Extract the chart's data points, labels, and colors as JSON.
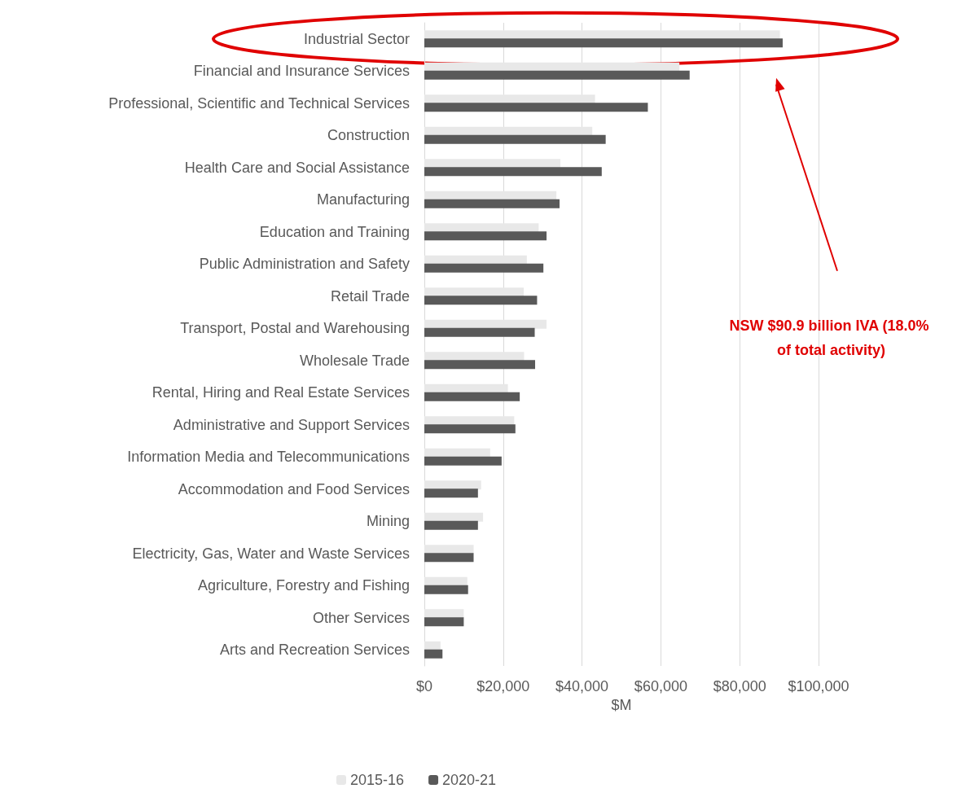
{
  "chart_data": {
    "type": "bar",
    "orientation": "horizontal",
    "xlabel": "$M",
    "categories": [
      "Industrial Sector",
      "Financial and Insurance Services",
      "Professional, Scientific and Technical Services",
      "Construction",
      "Health Care and Social Assistance",
      "Manufacturing",
      "Education and Training",
      "Public Administration and Safety",
      "Retail Trade",
      "Transport, Postal and Warehousing",
      "Wholesale Trade",
      "Rental, Hiring and Real Estate Services",
      "Administrative and Support Services",
      "Information Media and Telecommunications",
      "Accommodation and Food Services",
      "Mining",
      "Electricity, Gas, Water and Waste Services",
      "Agriculture, Forestry and Fishing",
      "Other Services",
      "Arts and Recreation Services"
    ],
    "series": [
      {
        "name": "2015-16",
        "color": "#e8e8e8",
        "values": [
          90200,
          64700,
          43300,
          42600,
          34500,
          33500,
          29000,
          26000,
          25200,
          31000,
          25300,
          21200,
          22800,
          16700,
          14400,
          14900,
          12500,
          10900,
          10000,
          4100
        ]
      },
      {
        "name": "2020-21",
        "color": "#595959",
        "values": [
          90900,
          67300,
          56700,
          46000,
          45000,
          34300,
          31000,
          30200,
          28600,
          28000,
          28100,
          24200,
          23100,
          19600,
          13600,
          13600,
          12500,
          11100,
          10000,
          4600
        ]
      }
    ],
    "xlim": [
      0,
      100000
    ],
    "xticks": [
      {
        "value": 0,
        "label": "$0"
      },
      {
        "value": 20000,
        "label": "$20,000"
      },
      {
        "value": 40000,
        "label": "$40,000"
      },
      {
        "value": 60000,
        "label": "$60,000"
      },
      {
        "value": 80000,
        "label": "$80,000"
      },
      {
        "value": 100000,
        "label": "$100,000"
      }
    ],
    "grid": "x",
    "legend": "bottom",
    "annotations": [
      "NSW $90.9 billion IVA (18.0% of total activity)"
    ]
  }
}
